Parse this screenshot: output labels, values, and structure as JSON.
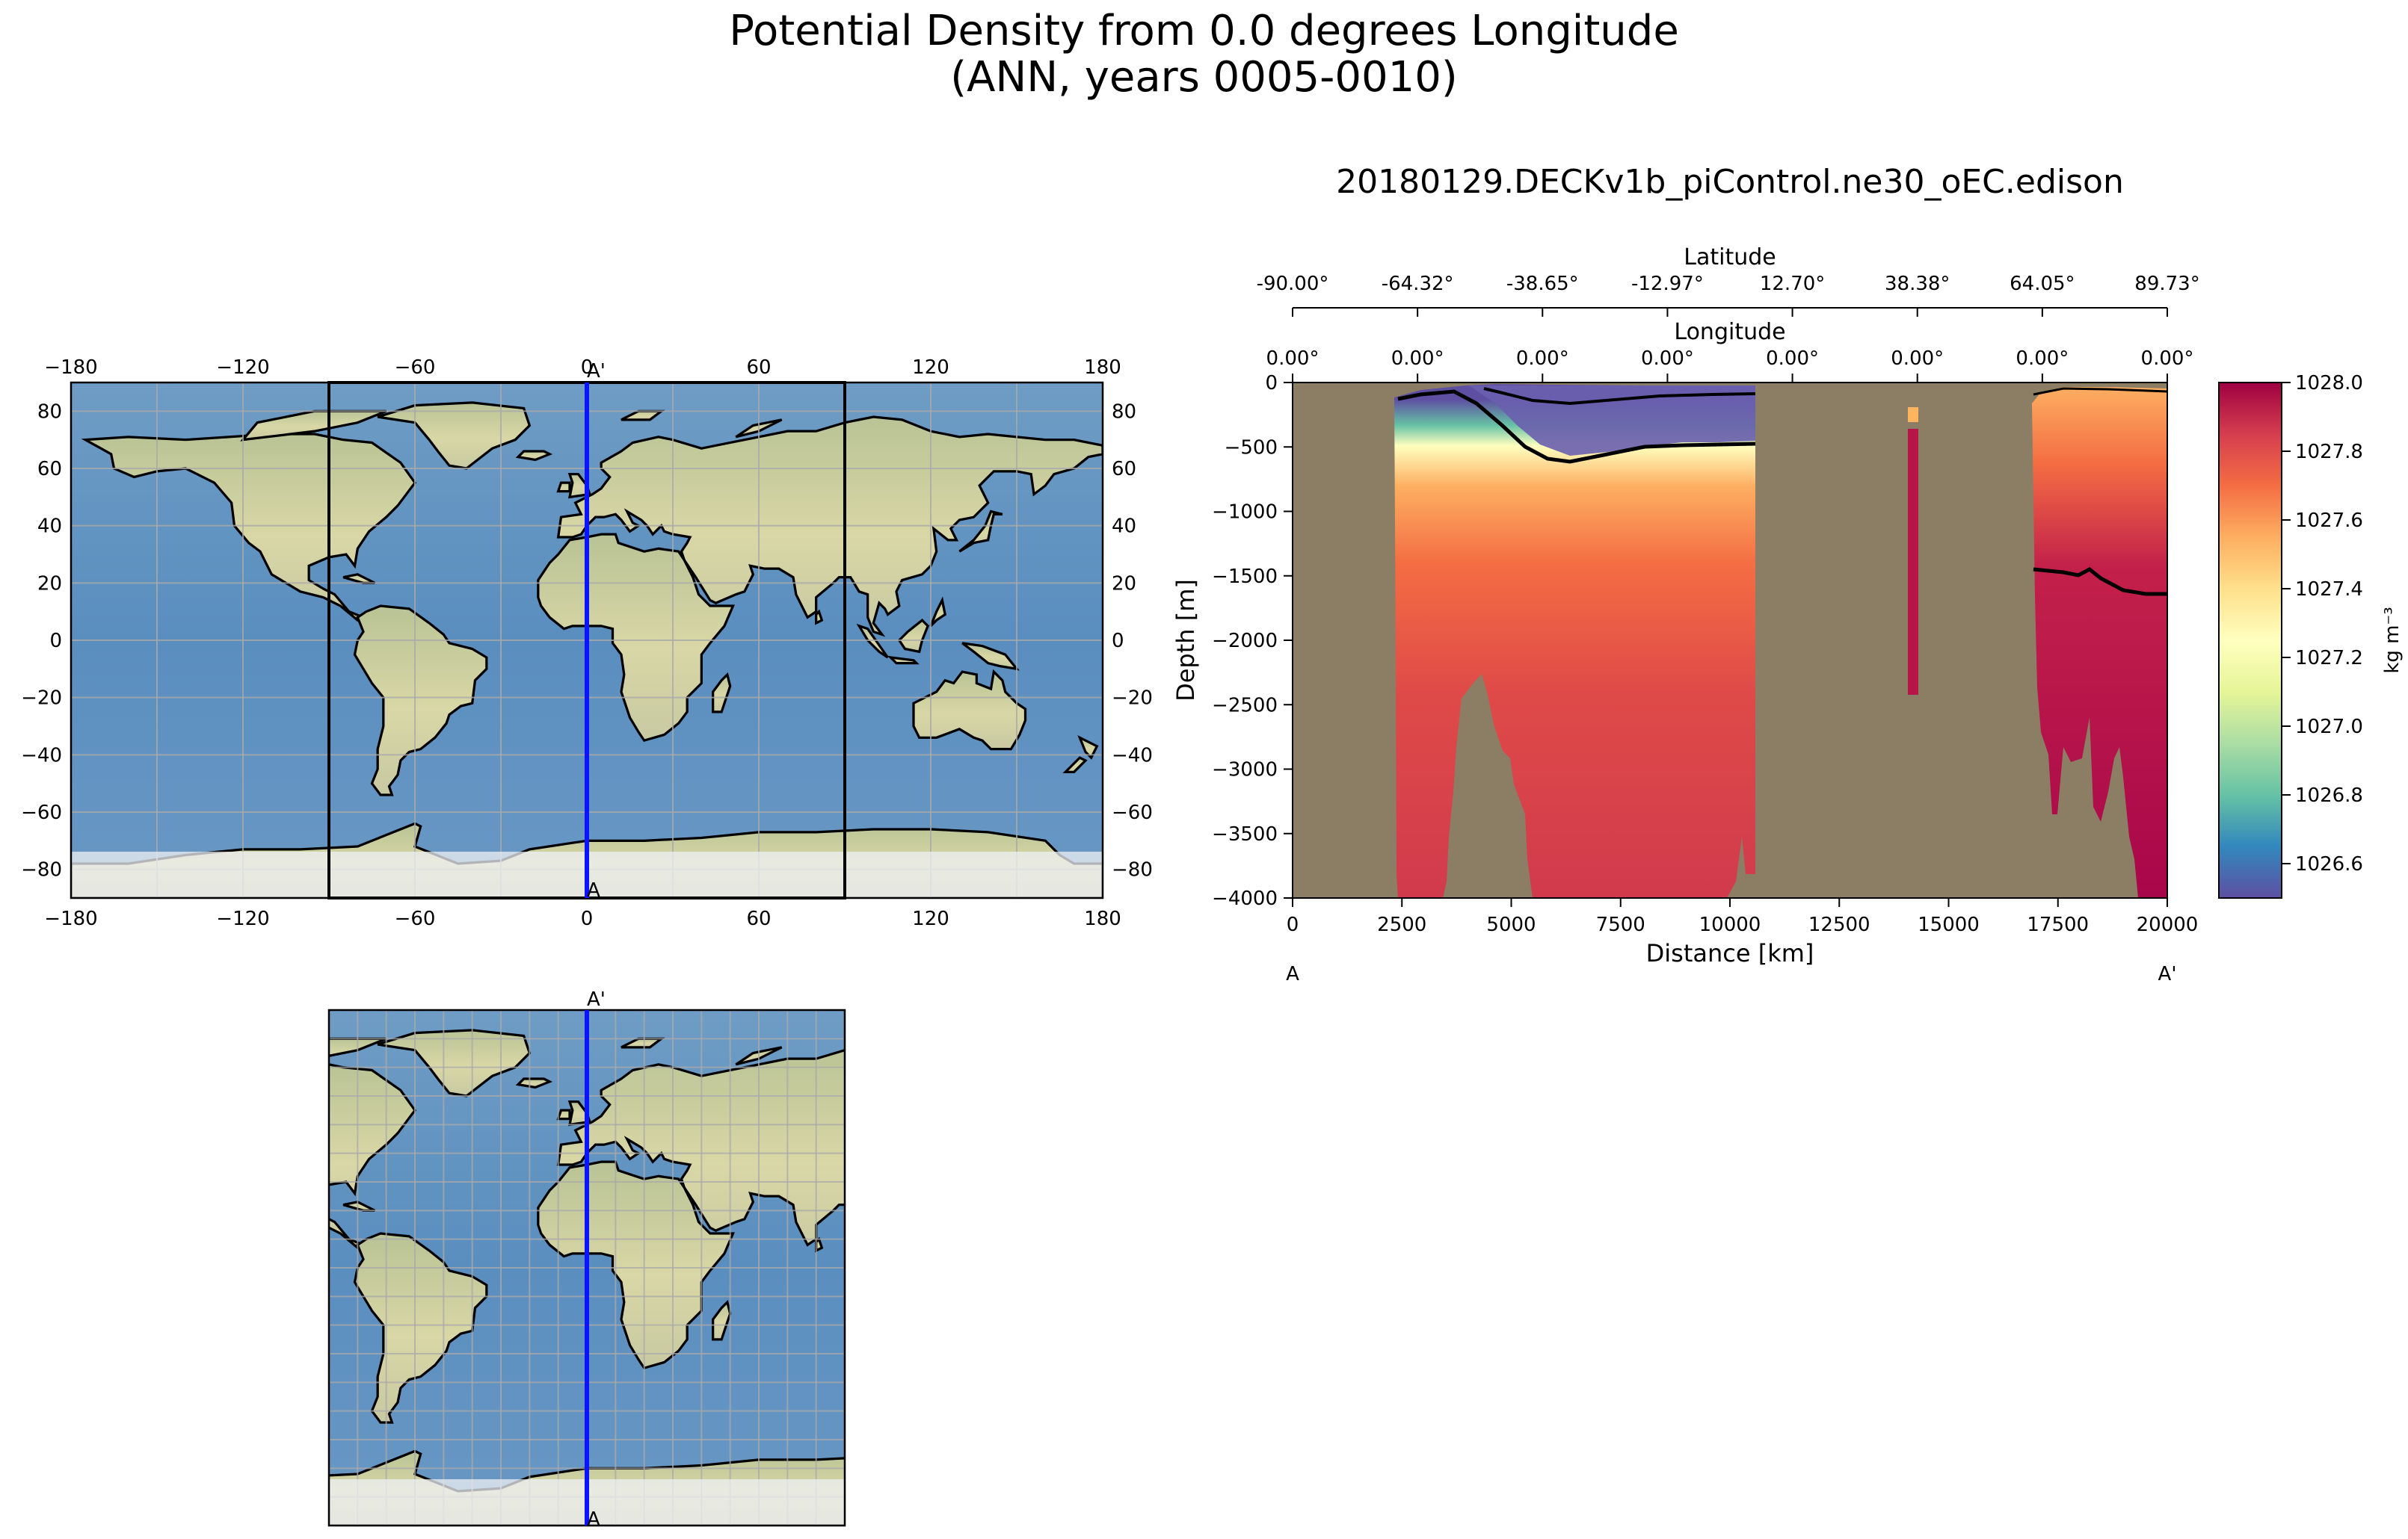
{
  "figure": {
    "title_line1": "Potential Density from 0.0 degrees Longitude",
    "title_line2": "(ANN, years 0005-0010)"
  },
  "chart_data": [
    {
      "id": "global-map",
      "type": "map",
      "x_ticks": [
        "−180",
        "−120",
        "−60",
        "0",
        "60",
        "120",
        "180"
      ],
      "x_tick_values": [
        -180,
        -120,
        -60,
        0,
        60,
        120,
        180
      ],
      "y_ticks": [
        "80",
        "60",
        "40",
        "20",
        "0",
        "−20",
        "−40",
        "−60",
        "−80"
      ],
      "y_tick_values": [
        80,
        60,
        40,
        20,
        0,
        -20,
        -40,
        -60,
        -80
      ],
      "xlim": [
        -180,
        180
      ],
      "ylim": [
        -90,
        90
      ],
      "grid": true,
      "transect": {
        "lon": 0,
        "color": "#0a14ff",
        "start_label": "A",
        "end_label": "A'"
      },
      "inset_box_lon": [
        -90,
        90
      ]
    },
    {
      "id": "zoom-map",
      "type": "map",
      "xlim": [
        -90,
        90
      ],
      "ylim": [
        -90,
        90
      ],
      "grid": true,
      "transect": {
        "lon": 0,
        "color": "#0a14ff",
        "start_label": "A",
        "end_label": "A'"
      }
    },
    {
      "id": "transect",
      "type": "heatmap",
      "title": "20180129.DECKv1b_piControl.ne30_oEC.edison",
      "xlabel": "Distance [km]",
      "ylabel": "Depth [m]",
      "xlim": [
        0,
        20000
      ],
      "ylim": [
        -4000,
        0
      ],
      "x_ticks": [
        "0",
        "2500",
        "5000",
        "7500",
        "10000",
        "12500",
        "15000",
        "17500",
        "20000"
      ],
      "x_tick_values": [
        0,
        2500,
        5000,
        7500,
        10000,
        12500,
        15000,
        17500,
        20000
      ],
      "y_ticks": [
        "0",
        "−500",
        "−1000",
        "−1500",
        "−2000",
        "−2500",
        "−3000",
        "−3500",
        "−4000"
      ],
      "y_tick_values": [
        0,
        -500,
        -1000,
        -1500,
        -2000,
        -2500,
        -3000,
        -3500,
        -4000
      ],
      "start_label": "A",
      "end_label": "A'",
      "latitude_axis": {
        "label": "Latitude",
        "ticks": [
          "-90.00°",
          "-64.32°",
          "-38.65°",
          "-12.97°",
          "12.70°",
          "38.38°",
          "64.05°",
          "89.73°"
        ]
      },
      "longitude_axis": {
        "label": "Longitude",
        "ticks": [
          "0.00°",
          "0.00°",
          "0.00°",
          "0.00°",
          "0.00°",
          "0.00°",
          "0.00°",
          "0.00°"
        ]
      },
      "colorbar": {
        "label": "kg m⁻³",
        "min": 1026.5,
        "max": 1028.0,
        "ticks": [
          "1028.0",
          "1027.8",
          "1027.6",
          "1027.4",
          "1027.2",
          "1027.0",
          "1026.8",
          "1026.6"
        ],
        "tick_values": [
          1028.0,
          1027.8,
          1027.6,
          1027.4,
          1027.2,
          1027.0,
          1026.8,
          1026.6
        ],
        "colors": [
          "#5e4fa2",
          "#3288bd",
          "#66c2a5",
          "#abdda4",
          "#e6f598",
          "#ffffbf",
          "#fee08b",
          "#fdae61",
          "#f46d43",
          "#d53e4f",
          "#9e0142"
        ]
      },
      "land_color": "#8c7e64"
    }
  ]
}
